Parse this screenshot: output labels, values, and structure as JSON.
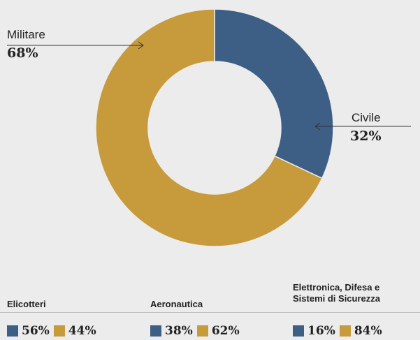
{
  "chart_data": {
    "type": "pie",
    "donut": true,
    "series": [
      {
        "name": "Civile",
        "value": 32,
        "label": "32%"
      },
      {
        "name": "Militare",
        "value": 68,
        "label": "68%"
      }
    ],
    "colors": {
      "civile": "#3d5f86",
      "militare": "#c79a3c"
    }
  },
  "callouts": {
    "militare": {
      "name": "Militare",
      "pct": "68%"
    },
    "civile": {
      "name": "Civile",
      "pct": "32%"
    }
  },
  "segments": [
    {
      "title": "Elicotteri",
      "civile": "56%",
      "militare": "44%"
    },
    {
      "title": "Aeronautica",
      "civile": "38%",
      "militare": "62%"
    },
    {
      "title_lines": [
        "Elettronica, Difesa e",
        "Sistemi di Sicurezza"
      ],
      "civile": "16%",
      "militare": "84%"
    }
  ]
}
